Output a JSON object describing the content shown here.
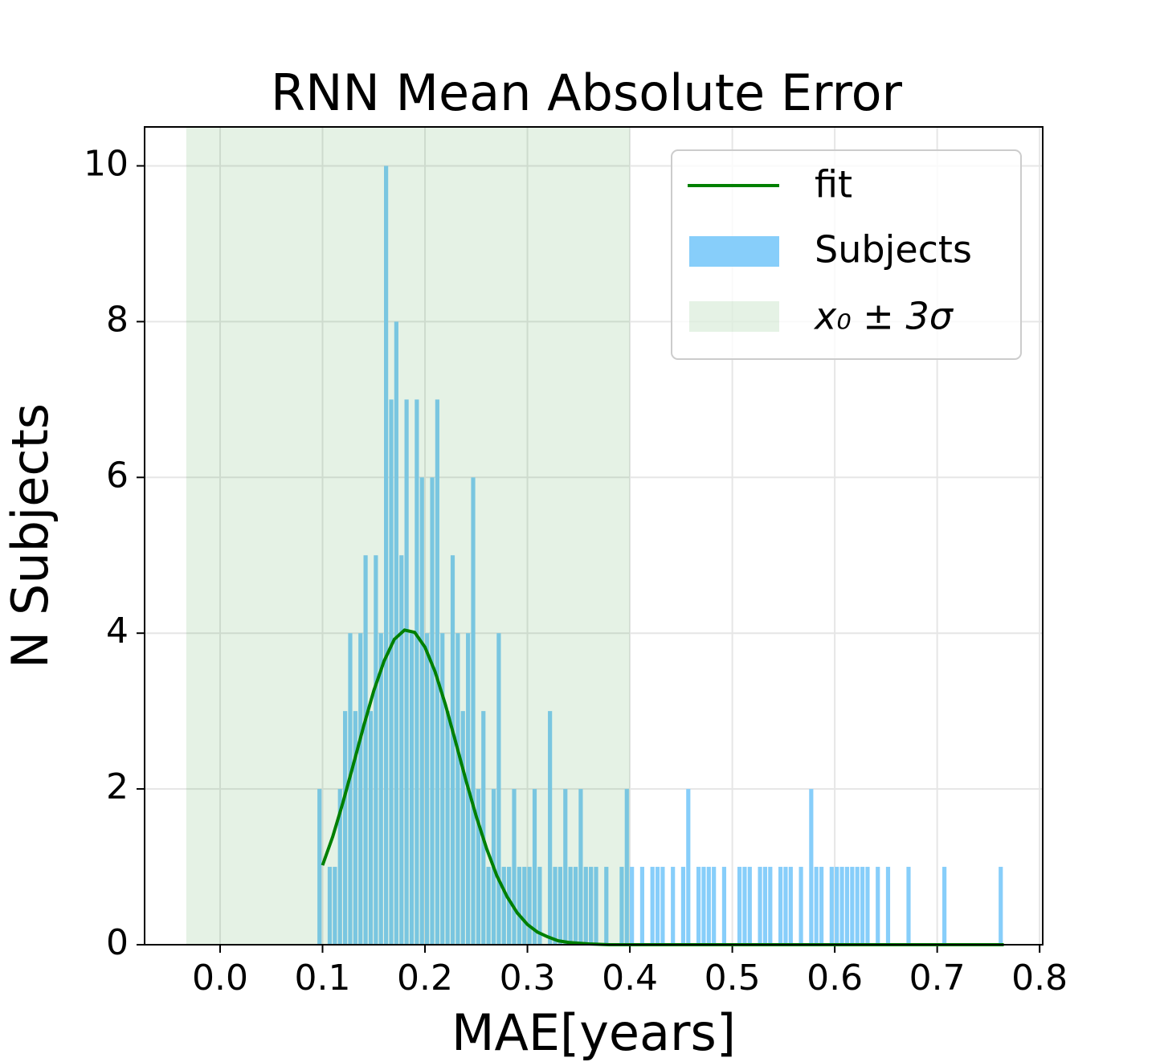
{
  "chart_data": {
    "type": "histogram",
    "title": "RNN Mean Absolute Error",
    "x_label": "MAE[years]",
    "y_label": "N Subjects",
    "name": "Subjects",
    "color": "#87cefa",
    "bins": [
      0.095,
      0.1,
      0.105,
      0.11,
      0.115,
      0.12,
      0.125,
      0.13,
      0.135,
      0.14,
      0.145,
      0.15,
      0.155,
      0.16,
      0.165,
      0.17,
      0.175,
      0.18,
      0.185,
      0.19,
      0.195,
      0.2,
      0.205,
      0.21,
      0.215,
      0.22,
      0.225,
      0.23,
      0.235,
      0.24,
      0.245,
      0.25,
      0.255,
      0.26,
      0.265,
      0.27,
      0.275,
      0.28,
      0.285,
      0.29,
      0.295,
      0.3,
      0.305,
      0.31,
      0.315,
      0.32,
      0.325,
      0.33,
      0.335,
      0.34,
      0.345,
      0.35,
      0.355,
      0.36,
      0.365,
      0.37,
      0.375,
      0.38,
      0.385,
      0.39,
      0.395,
      0.4,
      0.405,
      0.41,
      0.415,
      0.42,
      0.425,
      0.43,
      0.435,
      0.44,
      0.445,
      0.45,
      0.455,
      0.46,
      0.465,
      0.47,
      0.475,
      0.48,
      0.485,
      0.49,
      0.495,
      0.5,
      0.505,
      0.51,
      0.515,
      0.52,
      0.525,
      0.53,
      0.535,
      0.54,
      0.545,
      0.55,
      0.555,
      0.56,
      0.565,
      0.57,
      0.575,
      0.58,
      0.585,
      0.59,
      0.595,
      0.6,
      0.605,
      0.61,
      0.615,
      0.62,
      0.625,
      0.63,
      0.635,
      0.64,
      0.645,
      0.65,
      0.655,
      0.66,
      0.665,
      0.67,
      0.675,
      0.68,
      0.685,
      0.69,
      0.695,
      0.7,
      0.705,
      0.71,
      0.715,
      0.72,
      0.725,
      0.73,
      0.735,
      0.74,
      0.745,
      0.75,
      0.755,
      0.76,
      0.765
    ],
    "values": [
      2,
      0,
      1,
      1,
      2,
      3,
      4,
      3,
      4,
      5,
      3,
      5,
      4,
      10,
      7,
      8,
      5,
      7,
      4,
      7,
      6,
      4,
      6,
      7,
      4,
      3,
      5,
      4,
      3,
      4,
      6,
      2,
      3,
      1,
      2,
      4,
      1,
      1,
      2,
      1,
      1,
      1,
      2,
      1,
      0,
      3,
      1,
      1,
      2,
      1,
      1,
      2,
      1,
      1,
      1,
      0,
      1,
      0,
      0,
      1,
      2,
      1,
      0,
      1,
      0,
      1,
      1,
      1,
      0,
      1,
      0,
      1,
      2,
      0,
      1,
      1,
      1,
      1,
      0,
      1,
      0,
      0,
      1,
      1,
      1,
      0,
      1,
      1,
      1,
      0,
      1,
      1,
      1,
      0,
      1,
      0,
      2,
      1,
      1,
      0,
      1,
      1,
      1,
      1,
      1,
      1,
      1,
      1,
      0,
      1,
      0,
      1,
      0,
      0,
      0,
      1,
      0,
      0,
      0,
      0,
      0,
      0,
      1,
      0,
      0,
      0,
      0,
      0,
      0,
      0,
      0,
      0,
      0,
      1
    ],
    "fit": {
      "name": "fit",
      "color": "#008000",
      "x": [
        0.1,
        0.11,
        0.12,
        0.13,
        0.14,
        0.15,
        0.16,
        0.17,
        0.18,
        0.19,
        0.2,
        0.21,
        0.22,
        0.23,
        0.24,
        0.25,
        0.26,
        0.27,
        0.28,
        0.29,
        0.3,
        0.31,
        0.32,
        0.33,
        0.34,
        0.35,
        0.36,
        0.38,
        0.4,
        0.5,
        0.6,
        0.7,
        0.765
      ],
      "values": [
        1.02,
        1.39,
        1.83,
        2.31,
        2.8,
        3.26,
        3.64,
        3.92,
        4.04,
        4.01,
        3.82,
        3.5,
        3.08,
        2.6,
        2.11,
        1.65,
        1.24,
        0.89,
        0.62,
        0.41,
        0.26,
        0.16,
        0.1,
        0.05,
        0.03,
        0.02,
        0.01,
        0,
        0,
        0,
        0,
        0,
        0
      ]
    },
    "band": {
      "name": "x₀ ± 3σ",
      "color": "#008000",
      "alpha": 0.1,
      "range": [
        -0.033,
        0.4
      ]
    },
    "xlim": [
      -0.0737,
      0.803
    ],
    "ylim": [
      0,
      10.5
    ],
    "xticks": [
      {
        "value": 0,
        "label": "0.0"
      },
      0.1,
      0.2,
      0.3,
      0.4,
      0.5,
      0.6,
      0.7,
      0.8
    ],
    "yticks": [
      0,
      2,
      4,
      6,
      8,
      10
    ],
    "grid": true,
    "legend": "upper right"
  }
}
